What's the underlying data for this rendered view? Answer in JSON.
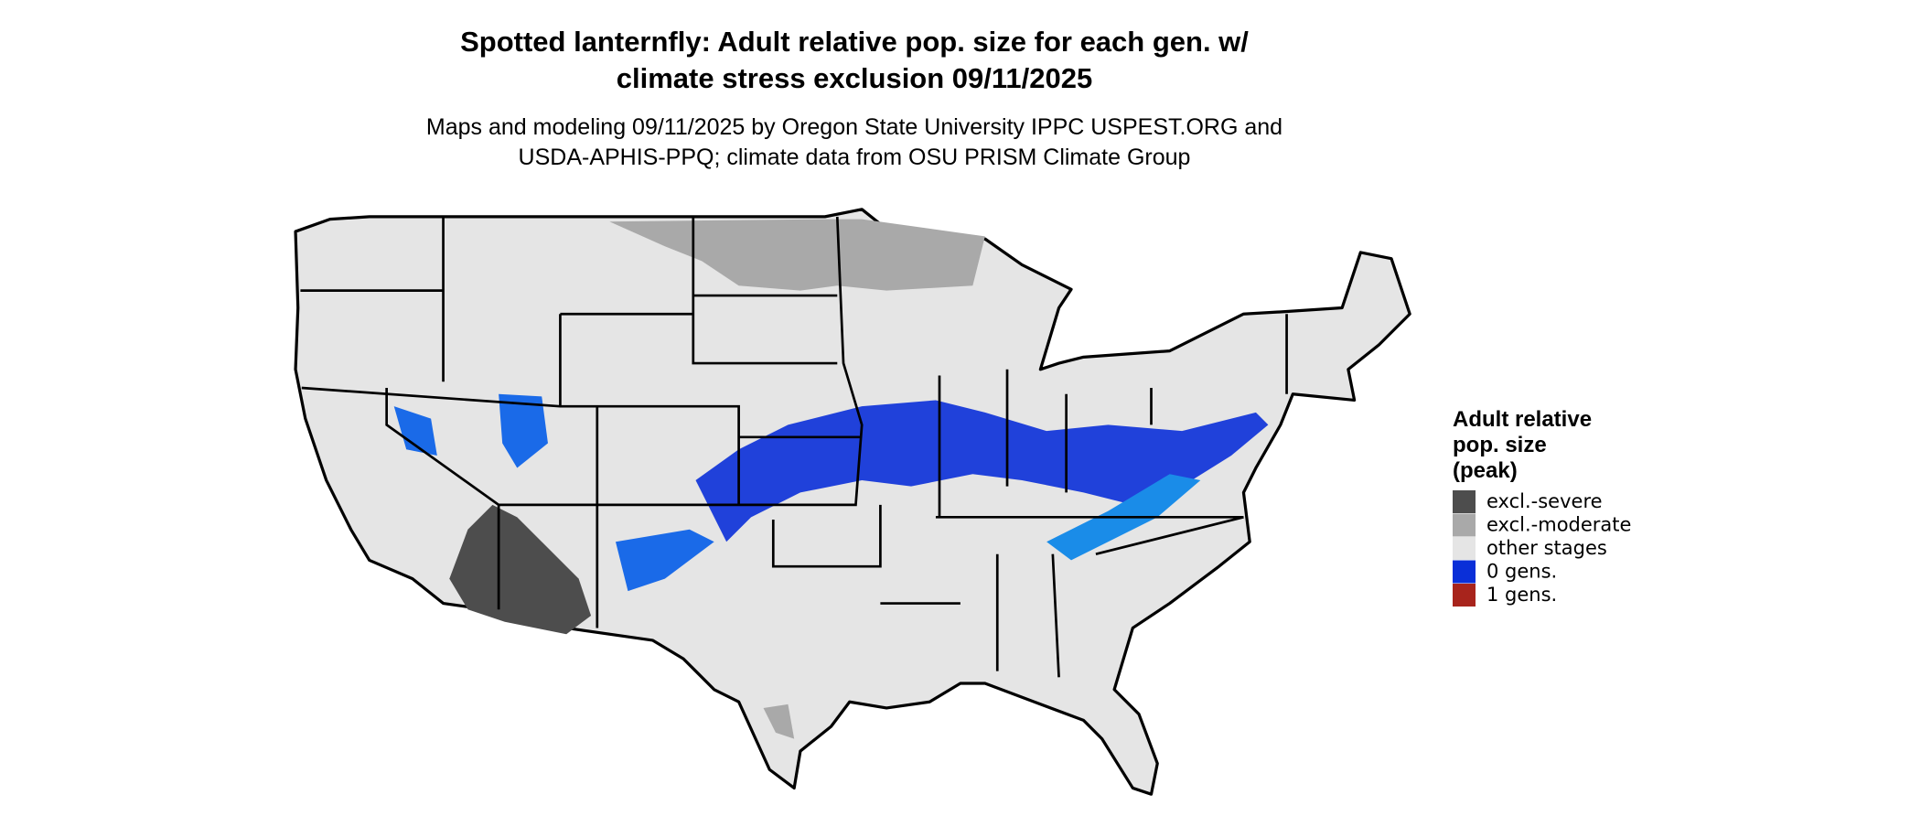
{
  "title": [
    "Spotted lanternfly: Adult relative pop. size for each gen. w/",
    "climate stress exclusion 09/11/2025"
  ],
  "subtitle": [
    "Maps and modeling 09/11/2025 by Oregon State University IPPC USPEST.ORG and",
    "USDA-APHIS-PPQ; climate data from OSU PRISM Climate Group"
  ],
  "legend": {
    "title": [
      "Adult relative",
      "pop. size",
      "(peak)"
    ],
    "items": [
      {
        "label": "excl.-severe",
        "color": "#4d4d4d"
      },
      {
        "label": "excl.-moderate",
        "color": "#a9a9a9"
      },
      {
        "label": "other stages",
        "color": "#e5e5e5"
      },
      {
        "label": "0 gens.",
        "color": "#0a2fd8"
      },
      {
        "label": "1 gens.",
        "color": "#a8241c"
      }
    ]
  }
}
